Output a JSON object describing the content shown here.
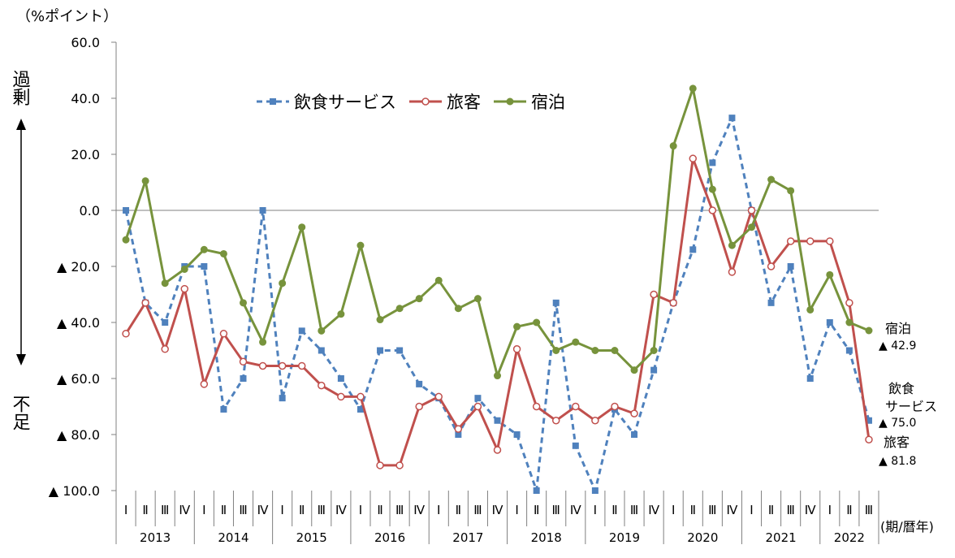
{
  "chart_data": {
    "type": "line",
    "unit_label": "（%ポイント）",
    "y_side_top": "過剰",
    "y_side_bottom": "不足",
    "ylim": [
      -100,
      60
    ],
    "y_ticks": [
      60,
      40,
      20,
      0,
      -20,
      -40,
      -60,
      -80,
      -100
    ],
    "y_tick_labels": [
      "60.0",
      "40.0",
      "20.0",
      "0.0",
      "▲ 20.0",
      "▲ 40.0",
      "▲ 60.0",
      "▲ 80.0",
      "▲ 100.0"
    ],
    "quarter_labels": [
      "Ⅰ",
      "Ⅱ",
      "Ⅲ",
      "Ⅳ"
    ],
    "years": [
      "2013",
      "2014",
      "2015",
      "2016",
      "2017",
      "2018",
      "2019",
      "2020",
      "2021",
      "2022"
    ],
    "x_unit": "(期/暦年)",
    "x": [
      "2013Ⅰ",
      "2013Ⅱ",
      "2013Ⅲ",
      "2013Ⅳ",
      "2014Ⅰ",
      "2014Ⅱ",
      "2014Ⅲ",
      "2014Ⅳ",
      "2015Ⅰ",
      "2015Ⅱ",
      "2015Ⅲ",
      "2015Ⅳ",
      "2016Ⅰ",
      "2016Ⅱ",
      "2016Ⅲ",
      "2016Ⅳ",
      "2017Ⅰ",
      "2017Ⅱ",
      "2017Ⅲ",
      "2017Ⅳ",
      "2018Ⅰ",
      "2018Ⅱ",
      "2018Ⅲ",
      "2018Ⅳ",
      "2019Ⅰ",
      "2019Ⅱ",
      "2019Ⅲ",
      "2019Ⅳ",
      "2020Ⅰ",
      "2020Ⅱ",
      "2020Ⅲ",
      "2020Ⅳ",
      "2021Ⅰ",
      "2021Ⅱ",
      "2021Ⅲ",
      "2021Ⅳ",
      "2022Ⅰ",
      "2022Ⅱ",
      "2022Ⅲ"
    ],
    "grid": false,
    "legend_position": "top-left",
    "series": [
      {
        "name": "飲食サービス",
        "color": "#4f81bd",
        "style": "dashed",
        "marker": "square",
        "values": [
          0,
          -33,
          -40,
          -20,
          -20,
          -71,
          -60,
          0,
          -67,
          -43,
          -50,
          -60,
          -71,
          -50,
          -50,
          -62,
          -67,
          -80,
          -67,
          -75,
          -80,
          -100,
          -33,
          -84,
          -100,
          -71,
          -80,
          -57,
          -33,
          -14,
          17,
          33,
          0,
          -33,
          -20,
          -60,
          -40,
          -50,
          -75
        ]
      },
      {
        "name": "旅客",
        "color": "#c0504d",
        "style": "solid",
        "marker": "circle-open",
        "values": [
          -44,
          -33,
          -49.5,
          -28,
          -62,
          -44,
          -54,
          -55.5,
          -55.5,
          -55.5,
          -62.5,
          -66.5,
          -66.5,
          -91,
          -91,
          -70,
          -66.5,
          -78,
          -70,
          -85.5,
          -49.5,
          -70,
          -75,
          -70,
          -75,
          -70,
          -72.5,
          -30,
          -33,
          18.5,
          0,
          -22,
          0,
          -20,
          -11,
          -11,
          -11,
          -33,
          -81.8
        ]
      },
      {
        "name": "宿泊",
        "color": "#77933c",
        "style": "solid",
        "marker": "circle",
        "values": [
          -10.5,
          10.5,
          -26,
          -21,
          -14,
          -15.5,
          -33,
          -47,
          -26,
          -6,
          -43,
          -37,
          -12.5,
          -39,
          -35,
          -31.5,
          -25,
          -35,
          -31.5,
          -59,
          -41.5,
          -40,
          -50,
          -47,
          -50,
          -50,
          -57,
          -50,
          23,
          43.5,
          7.5,
          -12.5,
          -6,
          11,
          7,
          -35.5,
          -23,
          -40,
          -42.9
        ]
      }
    ],
    "end_annotations": [
      {
        "series": "宿泊",
        "label_lines": [
          "宿泊"
        ],
        "value_text": "▲ 42.9"
      },
      {
        "series": "飲食サービス",
        "label_lines": [
          "飲食",
          "サービス"
        ],
        "value_text": "▲ 75.0"
      },
      {
        "series": "旅客",
        "label_lines": [
          "旅客"
        ],
        "value_text": "▲ 81.8"
      }
    ]
  }
}
